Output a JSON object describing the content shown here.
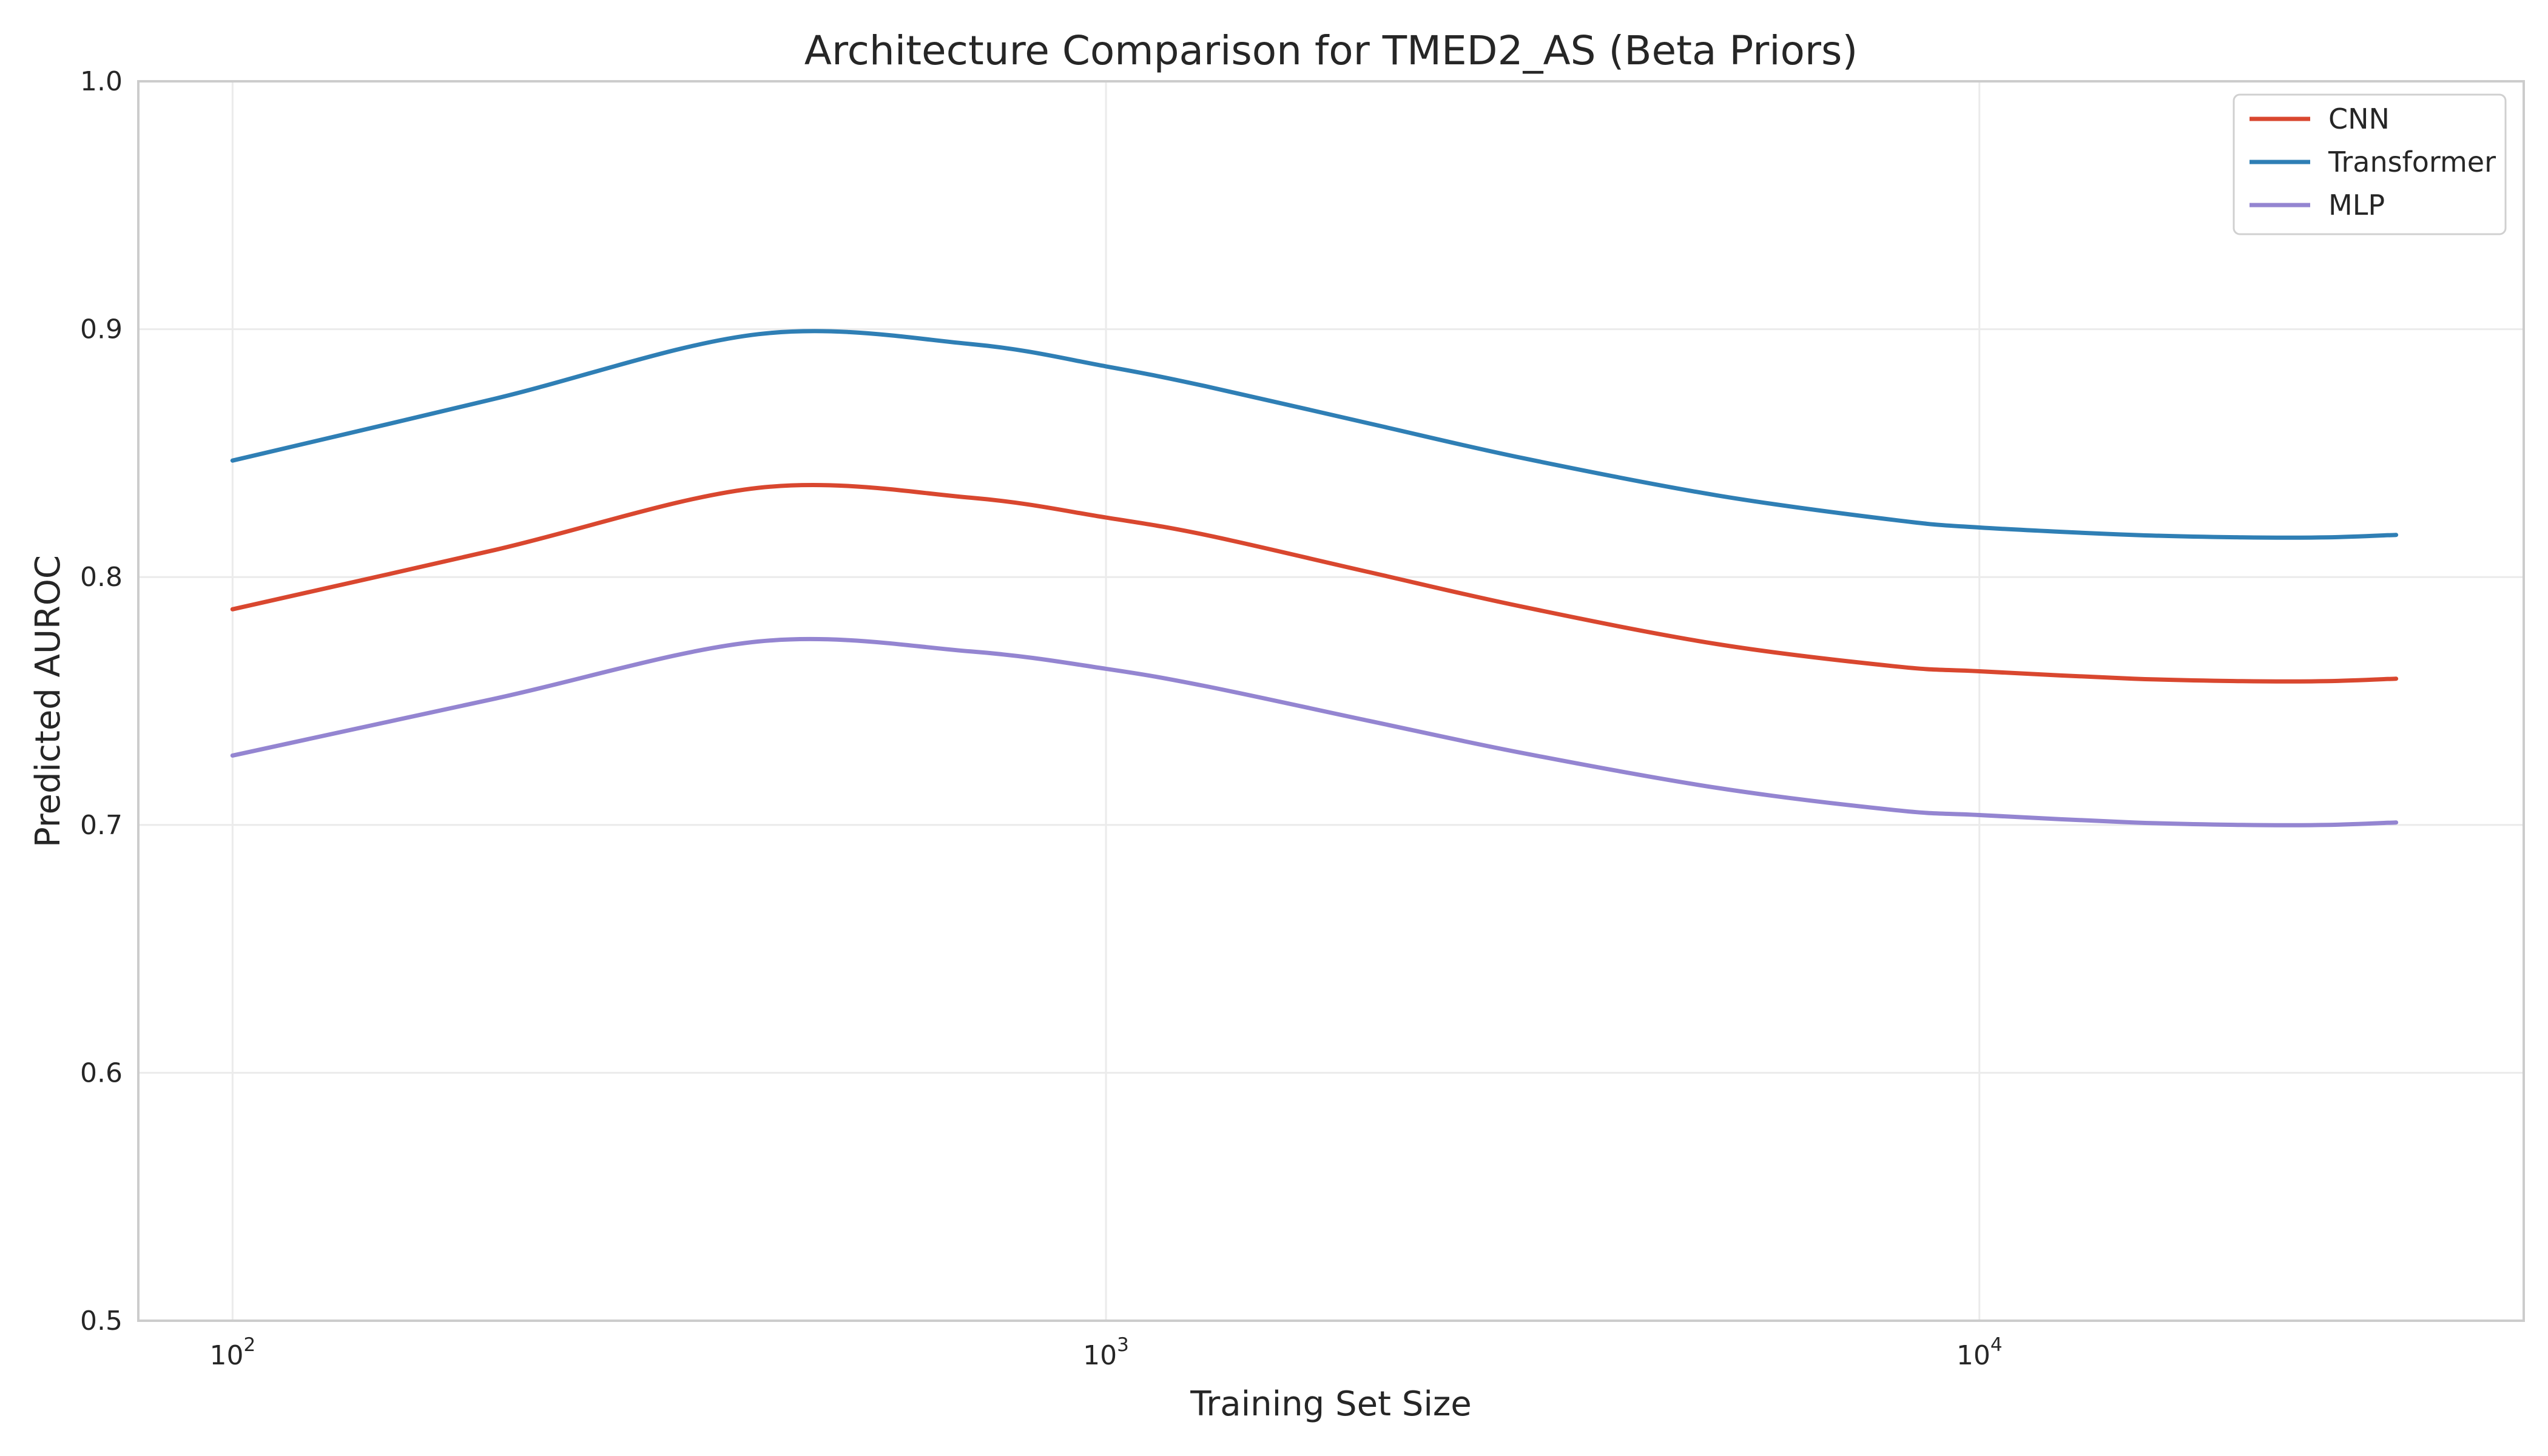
{
  "chart_data": {
    "type": "line",
    "title": "Architecture Comparison for TMED2_AS (Beta Priors)",
    "xlabel": "Training Set Size",
    "ylabel": "Predicted AUROC",
    "xscale": "log",
    "xlim": [
      78,
      42000
    ],
    "ylim": [
      0.5,
      1.0
    ],
    "x_ticks": [
      {
        "value": 100,
        "label_base": "10",
        "label_exp": "2"
      },
      {
        "value": 1000,
        "label_base": "10",
        "label_exp": "3"
      },
      {
        "value": 10000,
        "label_base": "10",
        "label_exp": "4"
      }
    ],
    "y_ticks": [
      {
        "value": 0.5,
        "label": "0.5"
      },
      {
        "value": 0.6,
        "label": "0.6"
      },
      {
        "value": 0.7,
        "label": "0.7"
      },
      {
        "value": 0.8,
        "label": "0.8"
      },
      {
        "value": 0.9,
        "label": "0.9"
      },
      {
        "value": 1.0,
        "label": "1.0"
      }
    ],
    "grid": true,
    "legend_position": "top-right",
    "x": [
      100,
      200,
      400,
      700,
      1000,
      1300,
      2000,
      3000,
      5000,
      8000,
      10000,
      15000,
      20000,
      25000,
      30000
    ],
    "series": [
      {
        "name": "CNN",
        "color": "#d9472f",
        "values": [
          0.787,
          0.811,
          0.836,
          0.832,
          0.824,
          0.817,
          0.802,
          0.788,
          0.773,
          0.764,
          0.762,
          0.759,
          0.758,
          0.758,
          0.759
        ]
      },
      {
        "name": "Transformer",
        "color": "#2f7fb5",
        "values": [
          0.847,
          0.872,
          0.898,
          0.894,
          0.885,
          0.877,
          0.862,
          0.848,
          0.833,
          0.823,
          0.82,
          0.817,
          0.816,
          0.816,
          0.817
        ]
      },
      {
        "name": "MLP",
        "color": "#9485d1",
        "values": [
          0.728,
          0.751,
          0.774,
          0.77,
          0.763,
          0.756,
          0.742,
          0.729,
          0.715,
          0.706,
          0.704,
          0.701,
          0.7,
          0.7,
          0.701
        ]
      }
    ]
  }
}
